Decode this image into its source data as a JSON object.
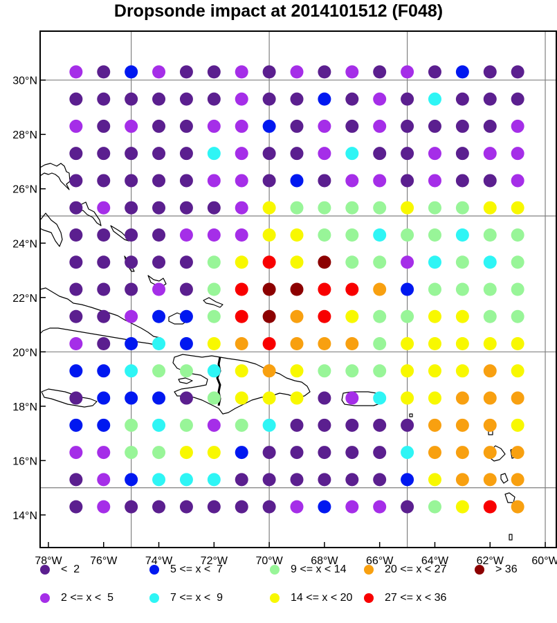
{
  "title": "Dropsonde impact at 2014101512 (F048)",
  "colors": {
    "cat0": "#5b1f8f",
    "cat1": "#a52ee8",
    "cat2": "#0018f0",
    "cat3": "#2ef5f5",
    "cat4": "#98f598",
    "cat5": "#f8f800",
    "cat6": "#f8a010",
    "cat7": "#f80000",
    "cat8": "#8c0000",
    "land_outline": "#000000",
    "grid": "#808080"
  },
  "axes": {
    "x_ticks": [
      "78°W",
      "76°W",
      "74°W",
      "72°W",
      "70°W",
      "68°W",
      "66°W",
      "64°W",
      "62°W",
      "60°W"
    ],
    "y_ticks": [
      "30°N",
      "28°N",
      "26°N",
      "24°N",
      "22°N",
      "20°N",
      "18°N",
      "16°N",
      "14°N"
    ]
  },
  "legend": [
    {
      "label": "<  2",
      "color_key": "cat0"
    },
    {
      "label": "5 <= x <  7",
      "color_key": "cat2"
    },
    {
      "label": "9 <= x < 14",
      "color_key": "cat4"
    },
    {
      "label": "20 <= x < 27",
      "color_key": "cat6"
    },
    {
      "label": "> 36",
      "color_key": "cat8"
    },
    {
      "label": "2 <= x <  5",
      "color_key": "cat1"
    },
    {
      "label": "7 <= x <  9",
      "color_key": "cat3"
    },
    {
      "label": "14 <= x < 20",
      "color_key": "cat5"
    },
    {
      "label": "27 <= x < 36",
      "color_key": "cat7"
    }
  ],
  "chart_data": {
    "type": "scatter",
    "title": "Dropsonde impact at 2014101512 (F048)",
    "xlim": [
      -78.3,
      -59.6
    ],
    "ylim": [
      12.8,
      31.8
    ],
    "grid": true,
    "grid_lon": [
      -75,
      -70,
      -65,
      -60
    ],
    "grid_lat": [
      15,
      20,
      25,
      30
    ],
    "lons": [
      -77,
      -76,
      -75,
      -74,
      -73,
      -72,
      -71,
      -70,
      -69,
      -68,
      -67,
      -66,
      -65,
      -64,
      -63,
      -62,
      -61
    ],
    "lats": [
      30.3,
      29.3,
      28.3,
      27.3,
      26.3,
      25.3,
      24.3,
      23.3,
      22.3,
      21.3,
      20.3,
      19.3,
      18.3,
      17.3,
      16.3,
      15.3,
      14.3
    ],
    "categories": [
      "< 2",
      "2 <= x < 5",
      "5 <= x < 7",
      "7 <= x < 9",
      "9 <= x < 14",
      "14 <= x < 20",
      "20 <= x < 27",
      "27 <= x < 36",
      "> 36"
    ],
    "category_grid": [
      [
        1,
        0,
        2,
        1,
        0,
        0,
        1,
        0,
        1,
        0,
        1,
        0,
        1,
        0,
        2,
        0,
        0
      ],
      [
        0,
        0,
        0,
        0,
        0,
        0,
        1,
        0,
        0,
        2,
        0,
        1,
        0,
        3,
        0,
        0,
        0
      ],
      [
        1,
        0,
        1,
        0,
        0,
        1,
        1,
        2,
        0,
        1,
        0,
        1,
        0,
        0,
        0,
        0,
        1
      ],
      [
        0,
        0,
        0,
        0,
        0,
        3,
        1,
        0,
        0,
        1,
        3,
        0,
        0,
        1,
        0,
        1,
        1
      ],
      [
        0,
        0,
        0,
        0,
        0,
        1,
        1,
        0,
        2,
        0,
        1,
        1,
        0,
        1,
        0,
        0,
        1
      ],
      [
        0,
        1,
        0,
        0,
        0,
        0,
        1,
        5,
        4,
        4,
        4,
        4,
        5,
        4,
        4,
        5,
        5
      ],
      [
        0,
        0,
        0,
        0,
        1,
        1,
        1,
        5,
        5,
        4,
        4,
        3,
        4,
        4,
        3,
        4,
        4
      ],
      [
        0,
        0,
        0,
        0,
        0,
        4,
        5,
        7,
        5,
        8,
        4,
        4,
        1,
        3,
        4,
        3,
        4
      ],
      [
        0,
        0,
        0,
        1,
        0,
        4,
        7,
        8,
        8,
        7,
        7,
        6,
        2,
        4,
        4,
        4,
        4
      ],
      [
        0,
        0,
        1,
        2,
        2,
        4,
        7,
        8,
        6,
        7,
        5,
        4,
        4,
        5,
        5,
        4,
        4
      ],
      [
        1,
        0,
        2,
        3,
        2,
        5,
        6,
        7,
        6,
        6,
        6,
        4,
        5,
        5,
        5,
        5,
        5
      ],
      [
        2,
        2,
        3,
        4,
        4,
        3,
        5,
        6,
        5,
        4,
        4,
        4,
        5,
        5,
        5,
        6,
        5
      ],
      [
        0,
        2,
        2,
        2,
        0,
        4,
        5,
        5,
        5,
        0,
        1,
        3,
        5,
        5,
        6,
        6,
        6
      ],
      [
        2,
        2,
        4,
        3,
        4,
        1,
        4,
        3,
        0,
        0,
        0,
        0,
        0,
        6,
        6,
        6,
        5
      ],
      [
        1,
        1,
        4,
        4,
        5,
        5,
        2,
        0,
        0,
        0,
        0,
        0,
        3,
        6,
        6,
        6,
        6
      ],
      [
        0,
        1,
        2,
        3,
        3,
        3,
        0,
        0,
        0,
        0,
        0,
        0,
        2,
        5,
        6,
        6,
        6
      ],
      [
        0,
        1,
        0,
        0,
        0,
        0,
        0,
        0,
        1,
        2,
        1,
        1,
        0,
        4,
        5,
        7,
        6
      ]
    ]
  }
}
